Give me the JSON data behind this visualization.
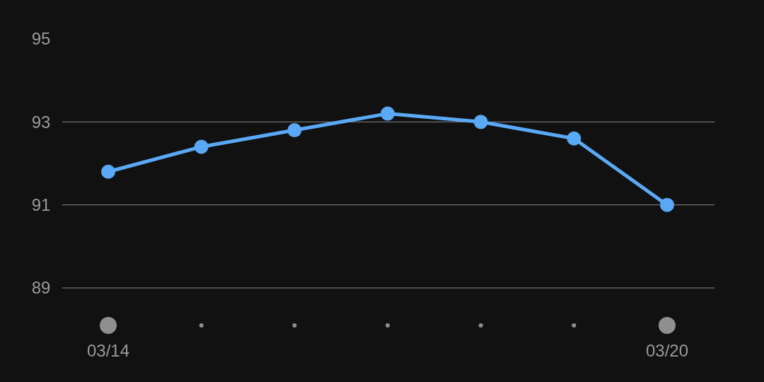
{
  "chart_data": {
    "type": "line",
    "categories": [
      "03/14",
      null,
      null,
      null,
      null,
      null,
      "03/20"
    ],
    "series": [
      {
        "color": "#5aa9f6",
        "values": [
          91.8,
          92.4,
          92.8,
          93.2,
          93.0,
          92.6,
          91.0
        ]
      }
    ],
    "ylim": [
      89,
      95
    ],
    "yticks": [
      89,
      91,
      93,
      95
    ],
    "grid": "y",
    "marker": "circle",
    "line_style": "solid"
  }
}
